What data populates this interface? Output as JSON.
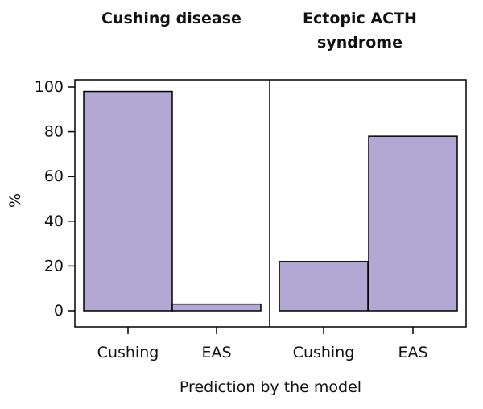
{
  "chart_data": {
    "type": "bar",
    "bar_color": "#b3a8d3",
    "bar_stroke": "#000000",
    "ylabel": "%",
    "xlabel": "Prediction by the model",
    "ylim": [
      0,
      100
    ],
    "yticks": [
      "0",
      "20",
      "40",
      "60",
      "80",
      "100"
    ],
    "grid": false,
    "panels": [
      {
        "title_lines": [
          "Cushing disease"
        ],
        "categories": [
          "Cushing",
          "EAS"
        ],
        "values": [
          98,
          3
        ]
      },
      {
        "title_lines": [
          "Ectopic ACTH",
          "syndrome"
        ],
        "categories": [
          "Cushing",
          "EAS"
        ],
        "values": [
          22,
          78
        ]
      }
    ]
  }
}
